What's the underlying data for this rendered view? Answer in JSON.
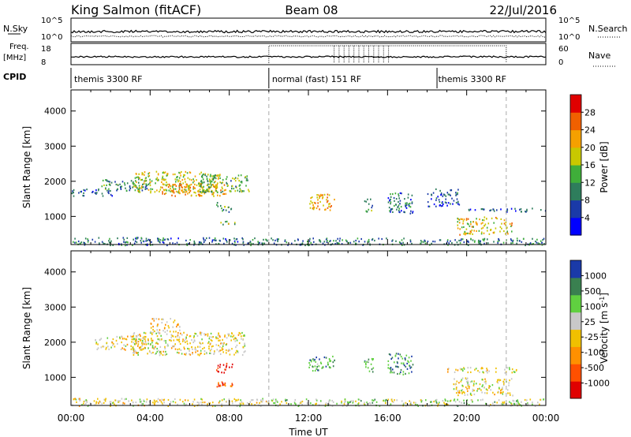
{
  "header": {
    "site": "King Salmon (fitACF)",
    "beam": "Beam 08",
    "date": "22/Jul/2016"
  },
  "noise_panel": {
    "left_label": "N.Sky",
    "right_label": "N.Search",
    "left_ticks": [
      "10^5",
      "10^0"
    ],
    "right_ticks": [
      "10^5",
      "10^0"
    ]
  },
  "freq_panel": {
    "left_label_line1": "Freq.",
    "left_label_line2": "[MHz]",
    "left_ticks": [
      "18",
      "8"
    ],
    "right_label": "Nave",
    "right_ticks": [
      "60",
      "0"
    ]
  },
  "cpid_panel": {
    "label": "CPID",
    "segments": [
      {
        "label": "themis 3300 RF",
        "start_hour": 0,
        "end_hour": 10
      },
      {
        "label": "normal (fast) 151 RF",
        "start_hour": 10,
        "end_hour": 18.5
      },
      {
        "label": "themis 3300 RF",
        "start_hour": 18.5,
        "end_hour": 24
      }
    ]
  },
  "x_axis": {
    "label": "Time UT",
    "ticks": [
      "00:00",
      "04:00",
      "08:00",
      "12:00",
      "16:00",
      "20:00",
      "00:00"
    ],
    "range_hours": [
      0,
      24
    ]
  },
  "dashed_lines_hours": [
    10,
    22
  ],
  "colors": {
    "power": [
      "#0000ff",
      "#1a3aa8",
      "#2e7d5c",
      "#3fae3a",
      "#c8c800",
      "#f5a000",
      "#f06000",
      "#e00000"
    ],
    "velocity": [
      "#e00000",
      "#ff5000",
      "#ff9000",
      "#f0c000",
      "#c8c8c8",
      "#60d040",
      "#3a8050",
      "#1a3aa8"
    ]
  },
  "chart_data": [
    {
      "type": "heatmap",
      "name": "power",
      "ylabel": "Slant Range [km]",
      "yticks": [
        "1000",
        "2000",
        "3000",
        "4000"
      ],
      "ylim": [
        200,
        4600
      ],
      "colorbar_label": "Power [dB]",
      "colorbar_ticks": [
        "4",
        "8",
        "12",
        "16",
        "20",
        "24",
        "28"
      ],
      "colorbar_range": [
        0,
        30
      ],
      "regions": [
        {
          "t0": 0.0,
          "t1": 10.0,
          "r0": 200,
          "r1": 420,
          "level": 0.28
        },
        {
          "t0": 0.0,
          "t1": 2.2,
          "r0": 1600,
          "r1": 1800,
          "level": 0.22
        },
        {
          "t0": 1.5,
          "t1": 4.0,
          "r0": 1750,
          "r1": 2100,
          "level": 0.35
        },
        {
          "t0": 3.2,
          "t1": 7.5,
          "r0": 1700,
          "r1": 2300,
          "level": 0.55
        },
        {
          "t0": 4.5,
          "t1": 7.8,
          "r0": 1600,
          "r1": 1950,
          "level": 0.7
        },
        {
          "t0": 6.5,
          "t1": 9.0,
          "r0": 1700,
          "r1": 2200,
          "level": 0.42
        },
        {
          "t0": 7.3,
          "t1": 8.2,
          "r0": 1150,
          "r1": 1450,
          "level": 0.4
        },
        {
          "t0": 7.5,
          "t1": 8.3,
          "r0": 780,
          "r1": 900,
          "level": 0.5
        },
        {
          "t0": 12.0,
          "t1": 13.3,
          "r0": 1200,
          "r1": 1650,
          "level": 0.7
        },
        {
          "t0": 14.8,
          "t1": 15.3,
          "r0": 1150,
          "r1": 1550,
          "level": 0.35
        },
        {
          "t0": 16.0,
          "t1": 17.3,
          "r0": 1100,
          "r1": 1700,
          "level": 0.25
        },
        {
          "t0": 18.0,
          "t1": 19.6,
          "r0": 1300,
          "r1": 1800,
          "level": 0.22
        },
        {
          "t0": 20.0,
          "t1": 24.0,
          "r0": 1150,
          "r1": 1250,
          "level": 0.22
        },
        {
          "t0": 19.5,
          "t1": 22.3,
          "r0": 500,
          "r1": 1000,
          "level": 0.6
        },
        {
          "t0": 10.0,
          "t1": 24.0,
          "r0": 200,
          "r1": 400,
          "level": 0.3
        }
      ]
    },
    {
      "type": "heatmap",
      "name": "velocity",
      "ylabel": "Slant Range [km]",
      "yticks": [
        "1000",
        "2000",
        "3000",
        "4000"
      ],
      "ylim": [
        200,
        4600
      ],
      "colorbar_label": "Velocity [m s^-1]",
      "colorbar_ticks": [
        "-1000",
        "-500",
        "-100",
        "-25",
        "25",
        "100",
        "500",
        "1000"
      ],
      "colorbar_range": [
        -1250,
        1250
      ],
      "regions": [
        {
          "t0": 0.0,
          "t1": 10.0,
          "r0": 200,
          "r1": 420,
          "level": 0.5
        },
        {
          "t0": 1.2,
          "t1": 4.0,
          "r0": 1800,
          "r1": 2200,
          "level": 0.5
        },
        {
          "t0": 3.0,
          "t1": 8.8,
          "r0": 1650,
          "r1": 2300,
          "level": 0.5
        },
        {
          "t0": 4.0,
          "t1": 5.5,
          "r0": 2300,
          "r1": 2700,
          "level": 0.42
        },
        {
          "t0": 7.3,
          "t1": 8.2,
          "r0": 1150,
          "r1": 1450,
          "level": 0.05
        },
        {
          "t0": 7.3,
          "t1": 8.3,
          "r0": 750,
          "r1": 900,
          "level": 0.22
        },
        {
          "t0": 12.0,
          "t1": 13.3,
          "r0": 1200,
          "r1": 1650,
          "level": 0.75
        },
        {
          "t0": 14.8,
          "t1": 15.3,
          "r0": 1150,
          "r1": 1550,
          "level": 0.75
        },
        {
          "t0": 16.0,
          "t1": 17.3,
          "r0": 1100,
          "r1": 1700,
          "level": 0.8
        },
        {
          "t0": 19.0,
          "t1": 22.5,
          "r0": 1150,
          "r1": 1300,
          "level": 0.5
        },
        {
          "t0": 19.3,
          "t1": 22.3,
          "r0": 500,
          "r1": 1000,
          "level": 0.5
        },
        {
          "t0": 10.0,
          "t1": 24.0,
          "r0": 200,
          "r1": 400,
          "level": 0.6
        }
      ]
    }
  ]
}
